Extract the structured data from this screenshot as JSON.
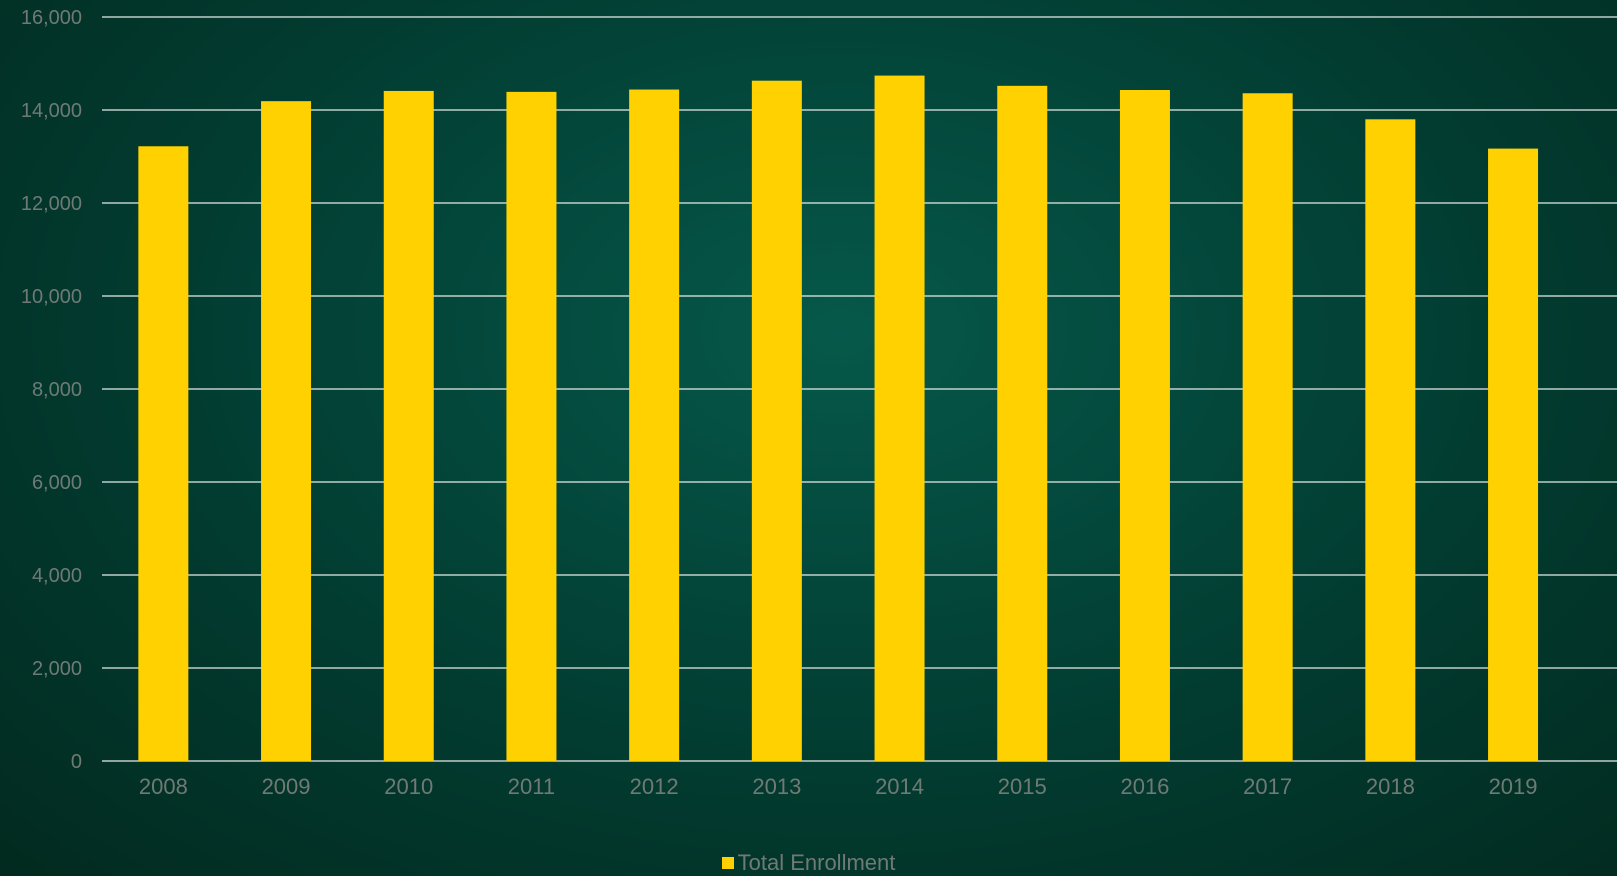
{
  "colors": {
    "bar": "#ffd100",
    "gridline": "#e6ece8",
    "tick_label": "#6f7a74"
  },
  "chart_data": {
    "type": "bar",
    "categories": [
      "2008",
      "2009",
      "2010",
      "2011",
      "2012",
      "2013",
      "2014",
      "2015",
      "2016",
      "2017",
      "2018",
      "2019"
    ],
    "series": [
      {
        "name": "Total Enrollment",
        "values": [
          13220,
          14190,
          14410,
          14390,
          14440,
          14630,
          14740,
          14520,
          14430,
          14360,
          13800,
          13170
        ]
      }
    ],
    "yticks": [
      "0",
      "2,000",
      "4,000",
      "6,000",
      "8,000",
      "10,000",
      "12,000",
      "14,000",
      "16,000"
    ],
    "ylim": [
      0,
      16000
    ],
    "grid": true,
    "legend_position": "bottom"
  }
}
